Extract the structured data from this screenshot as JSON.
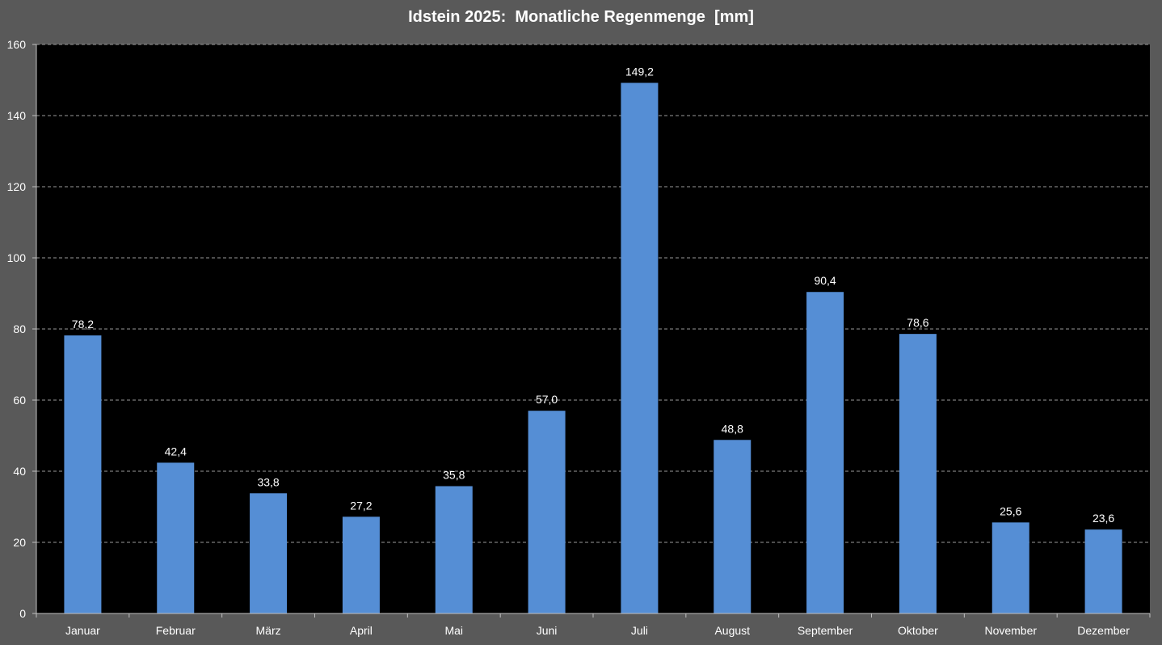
{
  "chart_data": {
    "type": "bar",
    "title": "Idstein 2025:  Monatliche Regenmenge  [mm]",
    "xlabel": "",
    "ylabel": "",
    "categories": [
      "Januar",
      "Februar",
      "März",
      "April",
      "Mai",
      "Juni",
      "Juli",
      "August",
      "September",
      "Oktober",
      "November",
      "Dezember"
    ],
    "values": [
      78.2,
      42.4,
      33.8,
      27.2,
      35.8,
      57.0,
      149.2,
      48.8,
      90.4,
      78.6,
      25.6,
      23.6
    ],
    "data_labels": [
      "78,2",
      "42,4",
      "33,8",
      "27,2",
      "35,8",
      "57,0",
      "149,2",
      "48,8",
      "90,4",
      "78,6",
      "25,6",
      "23,6"
    ],
    "ylim": [
      0,
      160
    ],
    "yticks": [
      0,
      20,
      40,
      60,
      80,
      100,
      120,
      140,
      160
    ],
    "grid": true,
    "legend": "none",
    "colors": {
      "bar": "#558ed5",
      "plot_background": "#000000",
      "chart_background": "#595959",
      "grid": "#9a9a9a",
      "text": "#ffffff"
    }
  }
}
